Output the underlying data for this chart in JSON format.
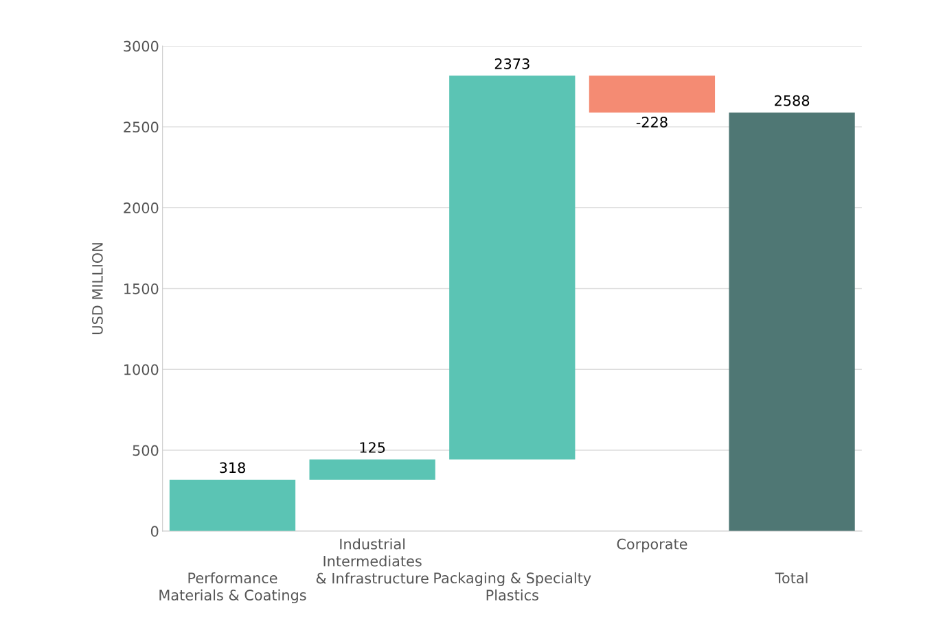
{
  "chart_data": {
    "type": "bar",
    "ylabel": "USD MILLION",
    "categories": [
      "Performance\nMaterials & Coatings",
      "Industrial\nIntermediates\n& Infrastructure",
      "Packaging & Specialty\nPlastics",
      "Corporate",
      "Total"
    ],
    "values": [
      318,
      125,
      2373,
      -228,
      2588
    ],
    "base": [
      0,
      318,
      443,
      2816,
      0
    ],
    "colors": [
      "#5bc4b4",
      "#5bc4b4",
      "#5bc4b4",
      "#f48b73",
      "#4f7774"
    ],
    "ylim": [
      0,
      3000
    ],
    "yticks": [
      0,
      500,
      1000,
      1500,
      2000,
      2500,
      3000
    ],
    "grid": "y",
    "data_labels": true
  }
}
